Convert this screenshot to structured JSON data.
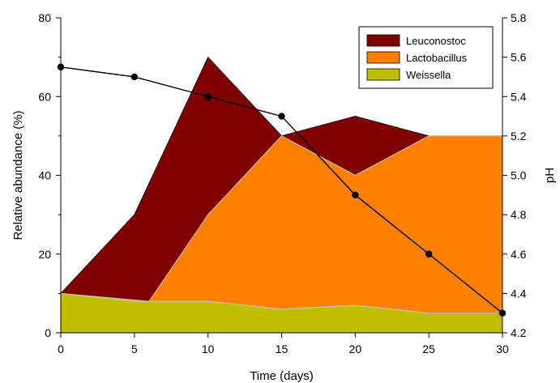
{
  "chart_data": {
    "type": "area",
    "stacked": true,
    "x": [
      0,
      5,
      10,
      15,
      20,
      25,
      30
    ],
    "xlabel": "Time (days)",
    "ylabel": "Relative abundance (%)",
    "y2label": "pH",
    "xlim": [
      0,
      30
    ],
    "ylim": [
      0,
      80
    ],
    "y2lim": [
      4.2,
      5.8
    ],
    "x_ticks": [
      "0",
      "5",
      "10",
      "15",
      "20",
      "25",
      "30"
    ],
    "y_ticks": [
      "0",
      "20",
      "40",
      "60",
      "80"
    ],
    "y2_ticks": [
      "4.2",
      "4.4",
      "4.6",
      "4.8",
      "5.0",
      "5.2",
      "5.4",
      "5.6",
      "5.8"
    ],
    "legend_position": "top-right",
    "grid": false,
    "series": [
      {
        "name": "Weissella",
        "color": "#bfbf00",
        "points": [
          [
            0,
            10
          ],
          [
            5,
            8
          ],
          [
            10,
            8
          ],
          [
            15,
            6
          ],
          [
            20,
            7
          ],
          [
            25,
            5
          ],
          [
            30,
            5
          ]
        ]
      },
      {
        "name": "Lactobacillus",
        "color": "#ff8000",
        "points": [
          [
            0,
            10
          ],
          [
            6,
            8
          ],
          [
            10,
            30
          ],
          [
            15,
            50
          ],
          [
            20,
            40
          ],
          [
            25,
            50
          ],
          [
            30,
            50
          ]
        ]
      },
      {
        "name": "Leuconostoc",
        "color": "#800000",
        "points": [
          [
            0,
            10
          ],
          [
            5,
            30
          ],
          [
            10,
            70
          ],
          [
            15,
            50
          ],
          [
            20,
            55
          ],
          [
            25,
            50
          ],
          [
            30,
            50
          ]
        ]
      }
    ],
    "ph_series": {
      "axis": "right",
      "color": "#000000",
      "x": [
        0,
        5,
        10,
        15,
        20,
        25,
        30
      ],
      "values": [
        5.55,
        5.5,
        5.4,
        5.3,
        4.9,
        4.6,
        4.3
      ]
    },
    "legend_order": [
      "Leuconostoc",
      "Lactobacillus",
      "Weissella"
    ]
  }
}
